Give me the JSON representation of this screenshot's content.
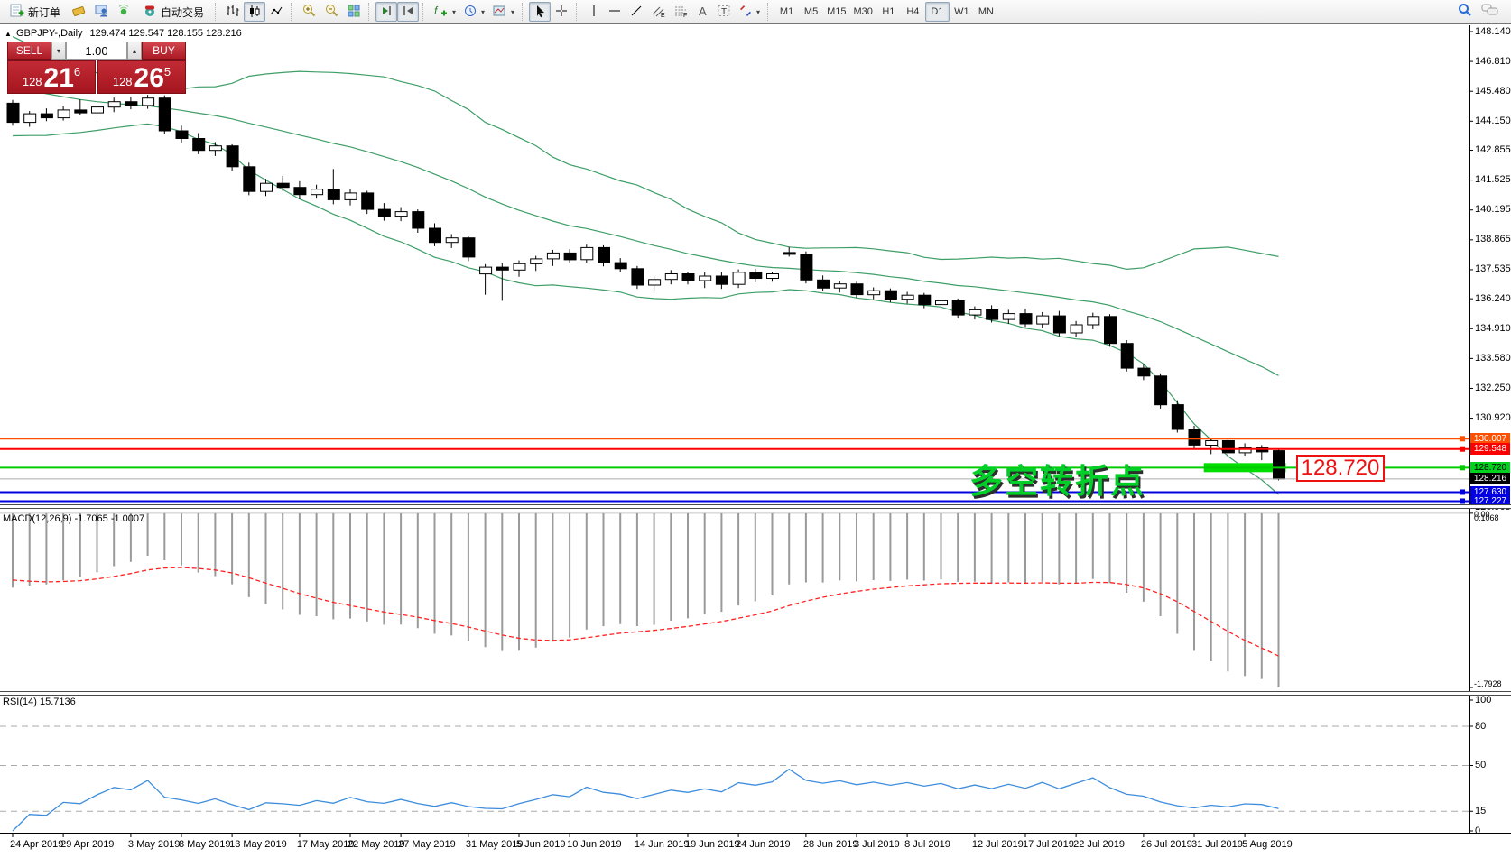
{
  "toolbar": {
    "new_order_label": "新订单",
    "auto_trading_label": "自动交易",
    "timeframes": [
      "M1",
      "M5",
      "M15",
      "M30",
      "H1",
      "H4",
      "D1",
      "W1",
      "MN"
    ],
    "active_timeframe": "D1"
  },
  "icons": {
    "search": "magnifier",
    "chat": "speech-bubbles",
    "new_order": "order-ticket-plus",
    "auto_trading": "robot-toggle",
    "zoom_in": "magnifier-plus",
    "zoom_out": "magnifier-minus",
    "cursor": "arrow-pointer",
    "crosshair": "cross"
  },
  "chart": {
    "symbol_title": "GBPJPY-,Daily",
    "ohlc_text": "129.474 129.547 128.155 128.216",
    "trade_panel": {
      "sell_label": "SELL",
      "buy_label": "BUY",
      "volume": "1.00",
      "sell_small": "128",
      "sell_big": "21",
      "sell_sup": "6",
      "buy_small": "128",
      "buy_big": "26",
      "buy_sup": "5"
    },
    "annotation_text": "多空转折点",
    "price_label": "128.720"
  },
  "chart_data": {
    "type": "candlestick",
    "symbol": "GBPJPY-",
    "timeframe": "Daily",
    "ylim": [
      126.9,
      148.3
    ],
    "grid": false,
    "indicators": {
      "bollinger": {
        "period": 20,
        "deviation": 2
      },
      "macd": {
        "fast": 12,
        "slow": 26,
        "signal": 9,
        "value": -1.7065,
        "signal_value": -1.0007
      },
      "rsi": {
        "period": 14,
        "value": 15.7136
      }
    },
    "macd_label": "MACD(12,26,9) -1.7065 -1.0007",
    "rsi_label": "RSI(14) 15.7136",
    "macd_axis": {
      "max": "0.1068",
      "zero": "0.00",
      "min": "-1.7928"
    },
    "rsi_axis": [
      100,
      80,
      50,
      15,
      0
    ],
    "rsi_gridlines": [
      80,
      50,
      15
    ],
    "price_axis_ticks": [
      "148.140",
      "146.810",
      "145.480",
      "144.150",
      "142.855",
      "141.525",
      "140.195",
      "138.865",
      "137.535",
      "136.240",
      "134.910",
      "133.580",
      "132.250",
      "130.920",
      "126.965"
    ],
    "price_tags": [
      {
        "text": "130.007",
        "bg": "#ff4f00",
        "fg": "#ffffff"
      },
      {
        "text": "129.548",
        "bg": "#ff0000",
        "fg": "#ffffff"
      },
      {
        "text": "128.720",
        "bg": "#00d21e",
        "fg": "#000000"
      },
      {
        "text": "128.216",
        "bg": "#000000",
        "fg": "#ffffff"
      },
      {
        "text": "127.630",
        "bg": "#0000e0",
        "fg": "#ffffff"
      },
      {
        "text": "127.227",
        "bg": "#0000e0",
        "fg": "#ffffff"
      }
    ],
    "h_lines": [
      {
        "price": 130.007,
        "color": "#ff4f00",
        "width": 2
      },
      {
        "price": 129.548,
        "color": "#ff0000",
        "width": 2
      },
      {
        "price": 128.72,
        "color": "#00cc00",
        "width": 2
      },
      {
        "price": 127.63,
        "color": "#0000dd",
        "width": 2
      },
      {
        "price": 127.227,
        "color": "#0000dd",
        "width": 2
      }
    ],
    "current_price": {
      "value": 128.216,
      "line_color": "#ababab"
    },
    "highlight_segment": {
      "from_bar": 71,
      "to_bar": 75,
      "price": 128.72,
      "color": "#00dd00"
    },
    "colors": {
      "bollinger": "#3d9e66",
      "macd_hist": "#9a9a9a",
      "macd_signal": "#ff2222",
      "rsi": "#3e8ddd",
      "bull_body": "#ffffff",
      "bear_body": "#000000"
    },
    "date_labels": [
      "24 Apr 2019",
      "29 Apr 2019",
      "3 May 2019",
      "8 May 2019",
      "13 May 2019",
      "17 May 2019",
      "22 May 2019",
      "27 May 2019",
      "31 May 2019",
      "5 Jun 2019",
      "10 Jun 2019",
      "14 Jun 2019",
      "19 Jun 2019",
      "24 Jun 2019",
      "28 Jun 2019",
      "3 Jul 2019",
      "8 Jul 2019",
      "12 Jul 2019",
      "17 Jul 2019",
      "22 Jul 2019",
      "26 Jul 2019",
      "31 Jul 2019",
      "5 Aug 2019"
    ],
    "date_tick_bars": [
      0,
      3,
      7,
      10,
      13,
      17,
      20,
      23,
      27,
      30,
      33,
      37,
      40,
      43,
      47,
      50,
      53,
      57,
      60,
      63,
      67,
      70,
      73
    ],
    "seed_closes": [
      148.2,
      147.9,
      147.6,
      147.3,
      147.0,
      146.7,
      146.45,
      146.2,
      145.95,
      145.75,
      145.55,
      145.35,
      145.2,
      145.05,
      144.9,
      144.8,
      144.7,
      144.6,
      144.55,
      144.5
    ],
    "candles": [
      [
        144.95,
        145.1,
        143.95,
        144.1
      ],
      [
        144.1,
        144.6,
        143.9,
        144.48
      ],
      [
        144.48,
        144.72,
        144.15,
        144.3
      ],
      [
        144.3,
        144.82,
        144.18,
        144.65
      ],
      [
        144.65,
        145.12,
        144.42,
        144.52
      ],
      [
        144.52,
        144.88,
        144.3,
        144.78
      ],
      [
        144.78,
        145.2,
        144.55,
        145.02
      ],
      [
        145.02,
        145.25,
        144.68,
        144.85
      ],
      [
        144.85,
        145.32,
        144.7,
        145.18
      ],
      [
        145.18,
        145.3,
        143.6,
        143.72
      ],
      [
        143.72,
        143.95,
        143.18,
        143.38
      ],
      [
        143.38,
        143.62,
        142.68,
        142.85
      ],
      [
        142.85,
        143.22,
        142.6,
        143.05
      ],
      [
        143.05,
        143.12,
        141.95,
        142.12
      ],
      [
        142.12,
        142.3,
        140.85,
        141.02
      ],
      [
        141.02,
        141.58,
        140.82,
        141.38
      ],
      [
        141.38,
        141.72,
        141.05,
        141.2
      ],
      [
        141.2,
        141.48,
        140.68,
        140.88
      ],
      [
        140.88,
        141.32,
        140.7,
        141.12
      ],
      [
        141.12,
        142.02,
        140.45,
        140.65
      ],
      [
        140.65,
        141.12,
        140.4,
        140.95
      ],
      [
        140.95,
        141.05,
        140.02,
        140.22
      ],
      [
        140.22,
        140.5,
        139.72,
        139.92
      ],
      [
        139.92,
        140.32,
        139.7,
        140.12
      ],
      [
        140.12,
        140.22,
        139.18,
        139.38
      ],
      [
        139.38,
        139.6,
        138.58,
        138.75
      ],
      [
        138.75,
        139.12,
        138.5,
        138.95
      ],
      [
        138.95,
        139.02,
        137.92,
        138.1
      ],
      [
        137.35,
        137.78,
        136.42,
        137.65
      ],
      [
        137.65,
        137.82,
        136.15,
        137.52
      ],
      [
        137.52,
        137.95,
        137.22,
        137.8
      ],
      [
        137.8,
        138.15,
        137.48,
        138.02
      ],
      [
        138.02,
        138.42,
        137.7,
        138.28
      ],
      [
        138.28,
        138.45,
        137.82,
        137.98
      ],
      [
        137.98,
        138.65,
        137.85,
        138.52
      ],
      [
        138.52,
        138.62,
        137.68,
        137.85
      ],
      [
        137.85,
        138.05,
        137.42,
        137.58
      ],
      [
        137.58,
        137.7,
        136.68,
        136.85
      ],
      [
        136.85,
        137.25,
        136.62,
        137.1
      ],
      [
        137.1,
        137.52,
        136.88,
        137.35
      ],
      [
        137.35,
        137.45,
        136.88,
        137.05
      ],
      [
        137.05,
        137.42,
        136.72,
        137.25
      ],
      [
        137.25,
        137.45,
        136.68,
        136.88
      ],
      [
        136.88,
        137.55,
        136.72,
        137.42
      ],
      [
        137.42,
        137.58,
        136.98,
        137.15
      ],
      [
        137.15,
        137.45,
        137.0,
        137.35
      ],
      [
        138.3,
        138.55,
        138.12,
        138.22
      ],
      [
        138.22,
        138.35,
        136.92,
        137.08
      ],
      [
        137.08,
        137.28,
        136.58,
        136.72
      ],
      [
        136.72,
        137.05,
        136.52,
        136.9
      ],
      [
        136.9,
        137.0,
        136.28,
        136.42
      ],
      [
        136.42,
        136.75,
        136.22,
        136.6
      ],
      [
        136.6,
        136.7,
        136.08,
        136.22
      ],
      [
        136.22,
        136.55,
        136.02,
        136.4
      ],
      [
        136.4,
        136.5,
        135.82,
        135.98
      ],
      [
        135.98,
        136.3,
        135.78,
        136.15
      ],
      [
        136.15,
        136.25,
        135.38,
        135.52
      ],
      [
        135.52,
        135.9,
        135.32,
        135.75
      ],
      [
        135.75,
        135.95,
        135.18,
        135.32
      ],
      [
        135.32,
        135.75,
        135.12,
        135.58
      ],
      [
        135.58,
        135.8,
        134.98,
        135.12
      ],
      [
        135.12,
        135.65,
        134.92,
        135.48
      ],
      [
        135.48,
        135.7,
        134.58,
        134.72
      ],
      [
        134.72,
        135.25,
        134.52,
        135.08
      ],
      [
        135.08,
        135.62,
        134.88,
        135.45
      ],
      [
        135.45,
        135.55,
        134.1,
        134.25
      ],
      [
        134.25,
        134.4,
        133.0,
        133.15
      ],
      [
        133.15,
        133.32,
        132.62,
        132.8
      ],
      [
        132.8,
        132.92,
        131.35,
        131.52
      ],
      [
        131.52,
        131.72,
        130.28,
        130.42
      ],
      [
        130.42,
        130.58,
        129.55,
        129.72
      ],
      [
        129.72,
        130.02,
        129.32,
        129.92
      ],
      [
        129.92,
        129.98,
        129.22,
        129.38
      ],
      [
        129.38,
        129.8,
        129.25,
        129.6
      ],
      [
        129.6,
        129.72,
        129.05,
        129.42
      ],
      [
        129.474,
        129.547,
        128.155,
        128.216
      ]
    ]
  }
}
